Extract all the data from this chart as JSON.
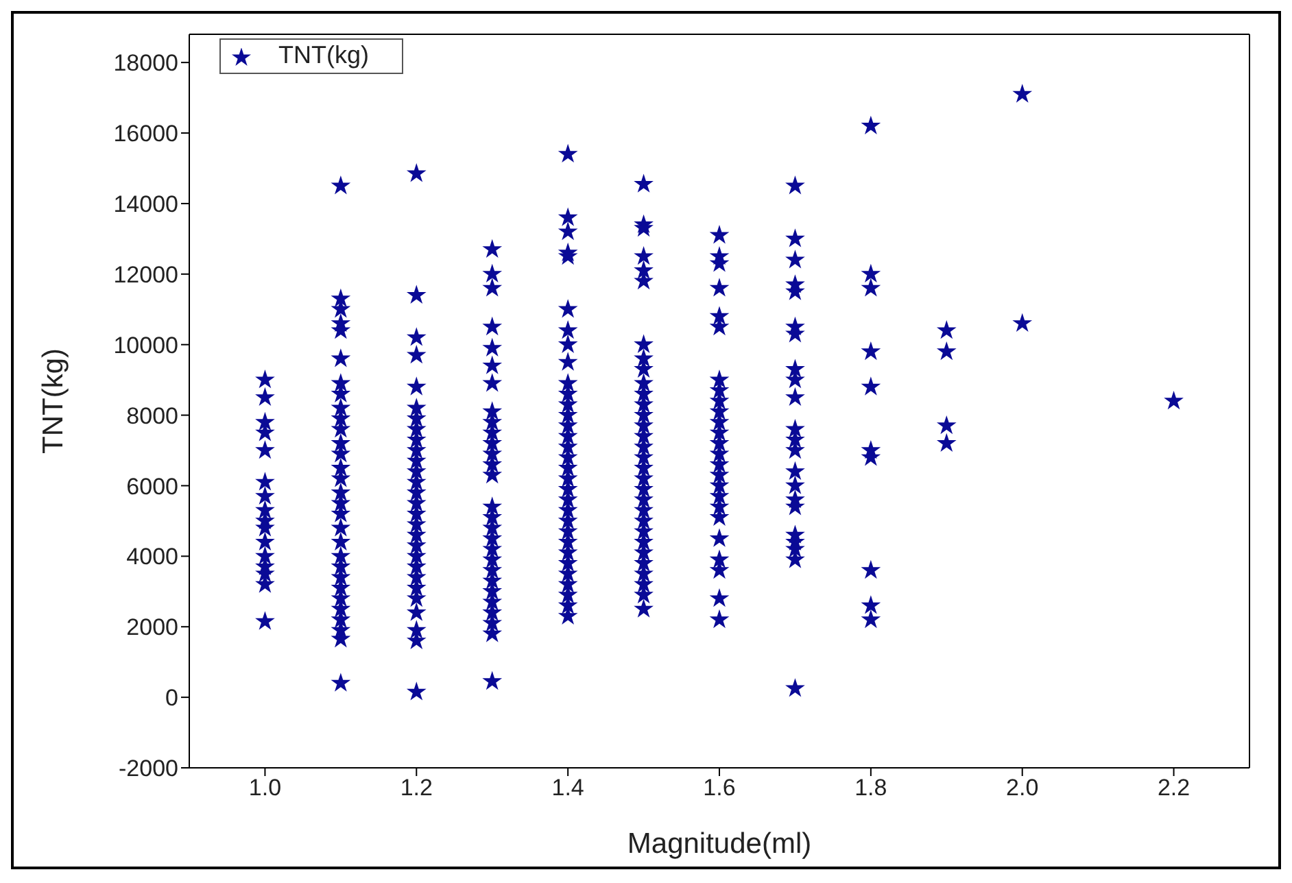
{
  "chart_data": {
    "type": "scatter",
    "xlabel": "Magnitude(ml)",
    "ylabel": "TNT(kg)",
    "xlim": [
      0.9,
      2.3
    ],
    "xticks": [
      {
        "value": 1.0,
        "label": "1.0"
      },
      {
        "value": 1.2,
        "label": "1.2"
      },
      {
        "value": 1.4,
        "label": "1.4"
      },
      {
        "value": 1.6,
        "label": "1.6"
      },
      {
        "value": 1.8,
        "label": "1.8"
      },
      {
        "value": 2.0,
        "label": "2.0"
      },
      {
        "value": 2.2,
        "label": "2.2"
      }
    ],
    "ylim": [
      -2000,
      18800
    ],
    "yticks": [
      -2000,
      0,
      2000,
      4000,
      6000,
      8000,
      10000,
      12000,
      14000,
      16000,
      18000
    ],
    "grid": false,
    "legend": "top left",
    "marker": "star",
    "series": [
      {
        "name": "TNT(kg)",
        "color": "#0a0a96",
        "x": [
          1.0,
          1.0,
          1.0,
          1.0,
          1.0,
          1.0,
          1.0,
          1.0,
          1.0,
          1.0,
          1.0,
          1.0,
          1.0,
          1.0,
          1.0,
          1.0,
          1.1,
          1.1,
          1.1,
          1.1,
          1.1,
          1.1,
          1.1,
          1.1,
          1.1,
          1.1,
          1.1,
          1.1,
          1.1,
          1.1,
          1.1,
          1.1,
          1.1,
          1.1,
          1.1,
          1.1,
          1.1,
          1.1,
          1.1,
          1.1,
          1.1,
          1.1,
          1.1,
          1.1,
          1.1,
          1.1,
          1.2,
          1.2,
          1.2,
          1.2,
          1.2,
          1.2,
          1.2,
          1.2,
          1.2,
          1.2,
          1.2,
          1.2,
          1.2,
          1.2,
          1.2,
          1.2,
          1.2,
          1.2,
          1.2,
          1.2,
          1.2,
          1.2,
          1.2,
          1.2,
          1.2,
          1.2,
          1.2,
          1.2,
          1.3,
          1.3,
          1.3,
          1.3,
          1.3,
          1.3,
          1.3,
          1.3,
          1.3,
          1.3,
          1.3,
          1.3,
          1.3,
          1.3,
          1.3,
          1.3,
          1.3,
          1.3,
          1.3,
          1.3,
          1.3,
          1.3,
          1.3,
          1.3,
          1.3,
          1.3,
          1.3,
          1.3,
          1.4,
          1.4,
          1.4,
          1.4,
          1.4,
          1.4,
          1.4,
          1.4,
          1.4,
          1.4,
          1.4,
          1.4,
          1.4,
          1.4,
          1.4,
          1.4,
          1.4,
          1.4,
          1.4,
          1.4,
          1.4,
          1.4,
          1.4,
          1.4,
          1.4,
          1.4,
          1.4,
          1.4,
          1.4,
          1.4,
          1.4,
          1.4,
          1.5,
          1.5,
          1.5,
          1.5,
          1.5,
          1.5,
          1.5,
          1.5,
          1.5,
          1.5,
          1.5,
          1.5,
          1.5,
          1.5,
          1.5,
          1.5,
          1.5,
          1.5,
          1.5,
          1.5,
          1.5,
          1.5,
          1.5,
          1.5,
          1.5,
          1.5,
          1.5,
          1.5,
          1.5,
          1.5,
          1.5,
          1.6,
          1.6,
          1.6,
          1.6,
          1.6,
          1.6,
          1.6,
          1.6,
          1.6,
          1.6,
          1.6,
          1.6,
          1.6,
          1.6,
          1.6,
          1.6,
          1.6,
          1.6,
          1.6,
          1.6,
          1.6,
          1.6,
          1.6,
          1.6,
          1.6,
          1.7,
          1.7,
          1.7,
          1.7,
          1.7,
          1.7,
          1.7,
          1.7,
          1.7,
          1.7,
          1.7,
          1.7,
          1.7,
          1.7,
          1.7,
          1.7,
          1.7,
          1.7,
          1.7,
          1.7,
          1.7,
          1.7,
          1.8,
          1.8,
          1.8,
          1.8,
          1.8,
          1.8,
          1.8,
          1.8,
          1.8,
          1.8,
          1.9,
          1.9,
          1.9,
          1.9,
          2.0,
          2.0,
          2.2
        ],
        "values": [
          9000,
          8500,
          7800,
          7500,
          7000,
          6100,
          5700,
          5300,
          5000,
          4800,
          4400,
          4000,
          3700,
          3500,
          3200,
          2150,
          14500,
          11300,
          11000,
          10600,
          10400,
          9600,
          8900,
          8600,
          8200,
          7900,
          7600,
          7200,
          6900,
          6500,
          6200,
          5800,
          5500,
          5200,
          4800,
          4400,
          4000,
          3700,
          3400,
          3100,
          2800,
          2500,
          2200,
          1900,
          1650,
          400,
          14850,
          11400,
          10200,
          9700,
          8800,
          8200,
          7900,
          7600,
          7300,
          7000,
          6700,
          6400,
          6100,
          5800,
          5500,
          5200,
          4900,
          4600,
          4300,
          4000,
          3700,
          3400,
          3100,
          2800,
          2400,
          1900,
          1600,
          150,
          12700,
          12000,
          11600,
          10500,
          9900,
          9400,
          8900,
          8100,
          7800,
          7500,
          7200,
          6900,
          6600,
          6300,
          5400,
          5100,
          4800,
          4500,
          4200,
          3900,
          3600,
          3300,
          3000,
          2700,
          2400,
          2100,
          1800,
          450,
          15400,
          13600,
          13200,
          12600,
          12500,
          11000,
          10400,
          10000,
          9500,
          8900,
          8600,
          8300,
          8000,
          7700,
          7400,
          7100,
          6800,
          6500,
          6200,
          5900,
          5600,
          5300,
          5000,
          4700,
          4400,
          4100,
          3800,
          3500,
          3200,
          2900,
          2600,
          2300,
          14550,
          13400,
          13300,
          12500,
          12100,
          11800,
          10000,
          9600,
          9300,
          8900,
          8600,
          8300,
          8000,
          7700,
          7400,
          7100,
          6800,
          6500,
          6200,
          5900,
          5600,
          5300,
          5000,
          4700,
          4400,
          4100,
          3800,
          3500,
          3200,
          2900,
          2500,
          13100,
          12500,
          12300,
          11600,
          10800,
          10500,
          9000,
          8700,
          8400,
          8100,
          7800,
          7500,
          7200,
          6900,
          6600,
          6300,
          6000,
          5700,
          5400,
          5100,
          4500,
          3900,
          3600,
          2800,
          2200,
          14500,
          13000,
          12400,
          11700,
          11500,
          10500,
          10300,
          9300,
          9000,
          8500,
          7600,
          7300,
          7000,
          6400,
          6000,
          5600,
          5400,
          4600,
          4400,
          4200,
          3900,
          250,
          16200,
          12000,
          11600,
          9800,
          8800,
          7000,
          6800,
          3600,
          2600,
          2200,
          10400,
          9800,
          7700,
          7200,
          17100,
          10600,
          8400
        ]
      }
    ]
  }
}
